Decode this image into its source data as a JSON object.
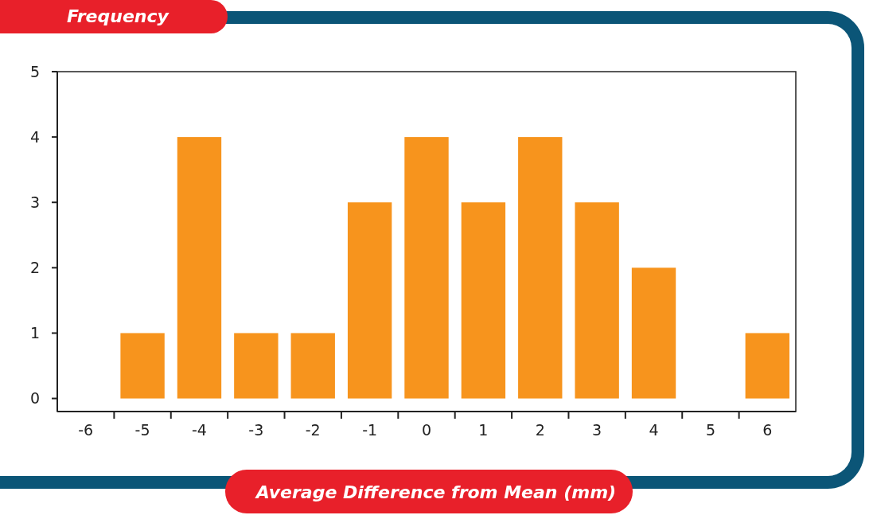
{
  "chart_data": {
    "type": "bar",
    "xlabel": "Average Difference from Mean (mm)",
    "ylabel": "Frequency",
    "categories": [
      "-6",
      "-5",
      "-4",
      "-3",
      "-2",
      "-1",
      "0",
      "1",
      "2",
      "3",
      "4",
      "5",
      "6"
    ],
    "values": [
      0,
      1,
      4,
      1,
      1,
      3,
      4,
      3,
      4,
      3,
      2,
      0,
      1
    ],
    "color": "#f7941d",
    "ylim": [
      -0.2,
      5
    ],
    "yticks": [
      0,
      1,
      2,
      3,
      4,
      5
    ],
    "grid": false
  }
}
